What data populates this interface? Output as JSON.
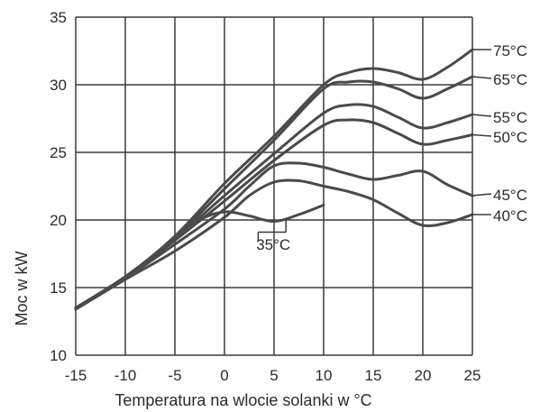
{
  "chart_data": {
    "type": "line",
    "title": "",
    "xlabel": "Temperatura na wlocie solanki w °C",
    "ylabel": "Moc w kW",
    "xlim": [
      -15,
      25
    ],
    "ylim": [
      10,
      35
    ],
    "xticks": [
      -15,
      -10,
      -5,
      0,
      5,
      10,
      15,
      20,
      25
    ],
    "yticks": [
      10,
      15,
      20,
      25,
      30,
      35
    ],
    "grid": true,
    "series": [
      {
        "name": "75°C",
        "x": [
          -15,
          -10,
          -5,
          0,
          5,
          10,
          12.5,
          15,
          17.5,
          20,
          22.5,
          25
        ],
        "y": [
          13.5,
          15.8,
          18.8,
          22.7,
          26.2,
          30.0,
          30.9,
          31.2,
          30.9,
          30.4,
          31.3,
          32.6
        ]
      },
      {
        "name": "65°C",
        "x": [
          -15,
          -10,
          -5,
          0,
          5,
          10,
          12.5,
          15,
          17.5,
          20,
          22.5,
          25
        ],
        "y": [
          13.5,
          15.8,
          18.7,
          22.3,
          25.9,
          29.7,
          30.2,
          30.2,
          29.7,
          29.0,
          29.7,
          30.6
        ]
      },
      {
        "name": "55°C",
        "x": [
          -15,
          -10,
          -5,
          0,
          5,
          10,
          12.5,
          15,
          17.5,
          20,
          22.5,
          25
        ],
        "y": [
          13.5,
          15.8,
          18.6,
          21.8,
          24.9,
          27.9,
          28.5,
          28.4,
          27.6,
          26.8,
          27.2,
          27.8
        ]
      },
      {
        "name": "50°C",
        "x": [
          -15,
          -10,
          -5,
          0,
          5,
          10,
          12.5,
          15,
          17.5,
          20,
          22.5,
          25
        ],
        "y": [
          13.5,
          15.8,
          18.5,
          21.4,
          24.4,
          27.0,
          27.4,
          27.2,
          26.4,
          25.6,
          25.9,
          26.3
        ]
      },
      {
        "name": "45°C",
        "x": [
          -15,
          -10,
          -5,
          0,
          2.5,
          5,
          7.5,
          10,
          12.5,
          15,
          17.5,
          20,
          22.5,
          25
        ],
        "y": [
          13.5,
          15.7,
          18.2,
          20.8,
          22.5,
          24.0,
          24.2,
          23.9,
          23.4,
          23.0,
          23.3,
          23.6,
          22.6,
          21.8
        ]
      },
      {
        "name": "40°C",
        "x": [
          -15,
          -10,
          -5,
          0,
          2.5,
          5,
          7.5,
          10,
          12.5,
          15,
          17.5,
          20,
          22.5,
          25
        ],
        "y": [
          13.4,
          15.6,
          17.7,
          20.2,
          21.8,
          22.8,
          22.9,
          22.5,
          22.1,
          21.5,
          20.5,
          19.6,
          19.8,
          20.4
        ]
      },
      {
        "name": "35°C",
        "x": [
          -15,
          -10,
          -5,
          -2.5,
          0,
          2.5,
          5,
          7.5,
          10
        ],
        "y": [
          13.4,
          15.7,
          18.5,
          20.0,
          20.6,
          20.3,
          19.9,
          20.4,
          21.1
        ]
      }
    ]
  }
}
